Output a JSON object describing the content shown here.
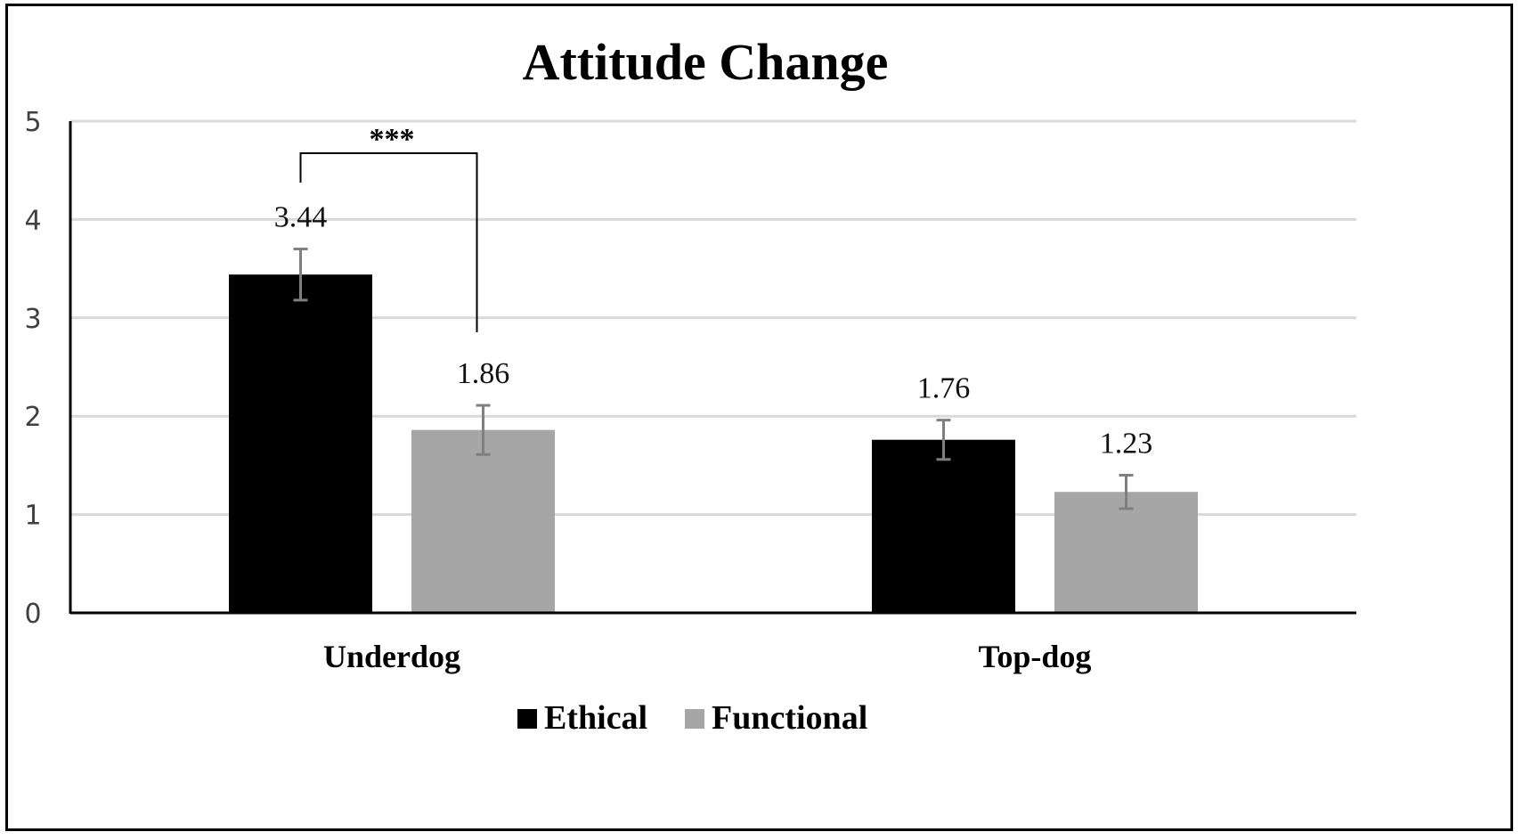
{
  "chart_data": {
    "type": "bar",
    "title": "Attitude Change",
    "categories": [
      "Underdog",
      "Top-dog"
    ],
    "series": [
      {
        "name": "Ethical",
        "values": [
          3.44,
          1.76
        ],
        "error": [
          0.26,
          0.2
        ],
        "color": "#000000"
      },
      {
        "name": "Functional",
        "values": [
          1.86,
          1.23
        ],
        "error": [
          0.25,
          0.17
        ],
        "color": "#a6a6a6"
      }
    ],
    "data_labels": [
      "3.44",
      "1.86",
      "1.76",
      "1.23"
    ],
    "ylim": [
      0,
      5
    ],
    "yticks": [
      "0",
      "1",
      "2",
      "3",
      "4",
      "5"
    ],
    "grid": true,
    "legend": "bottom",
    "annotation": {
      "text": "***",
      "between": [
        "Underdog:Ethical",
        "Underdog:Functional"
      ]
    },
    "gridline_color": "#d9d9d9",
    "errorbar_color": "#7f7f7f"
  }
}
